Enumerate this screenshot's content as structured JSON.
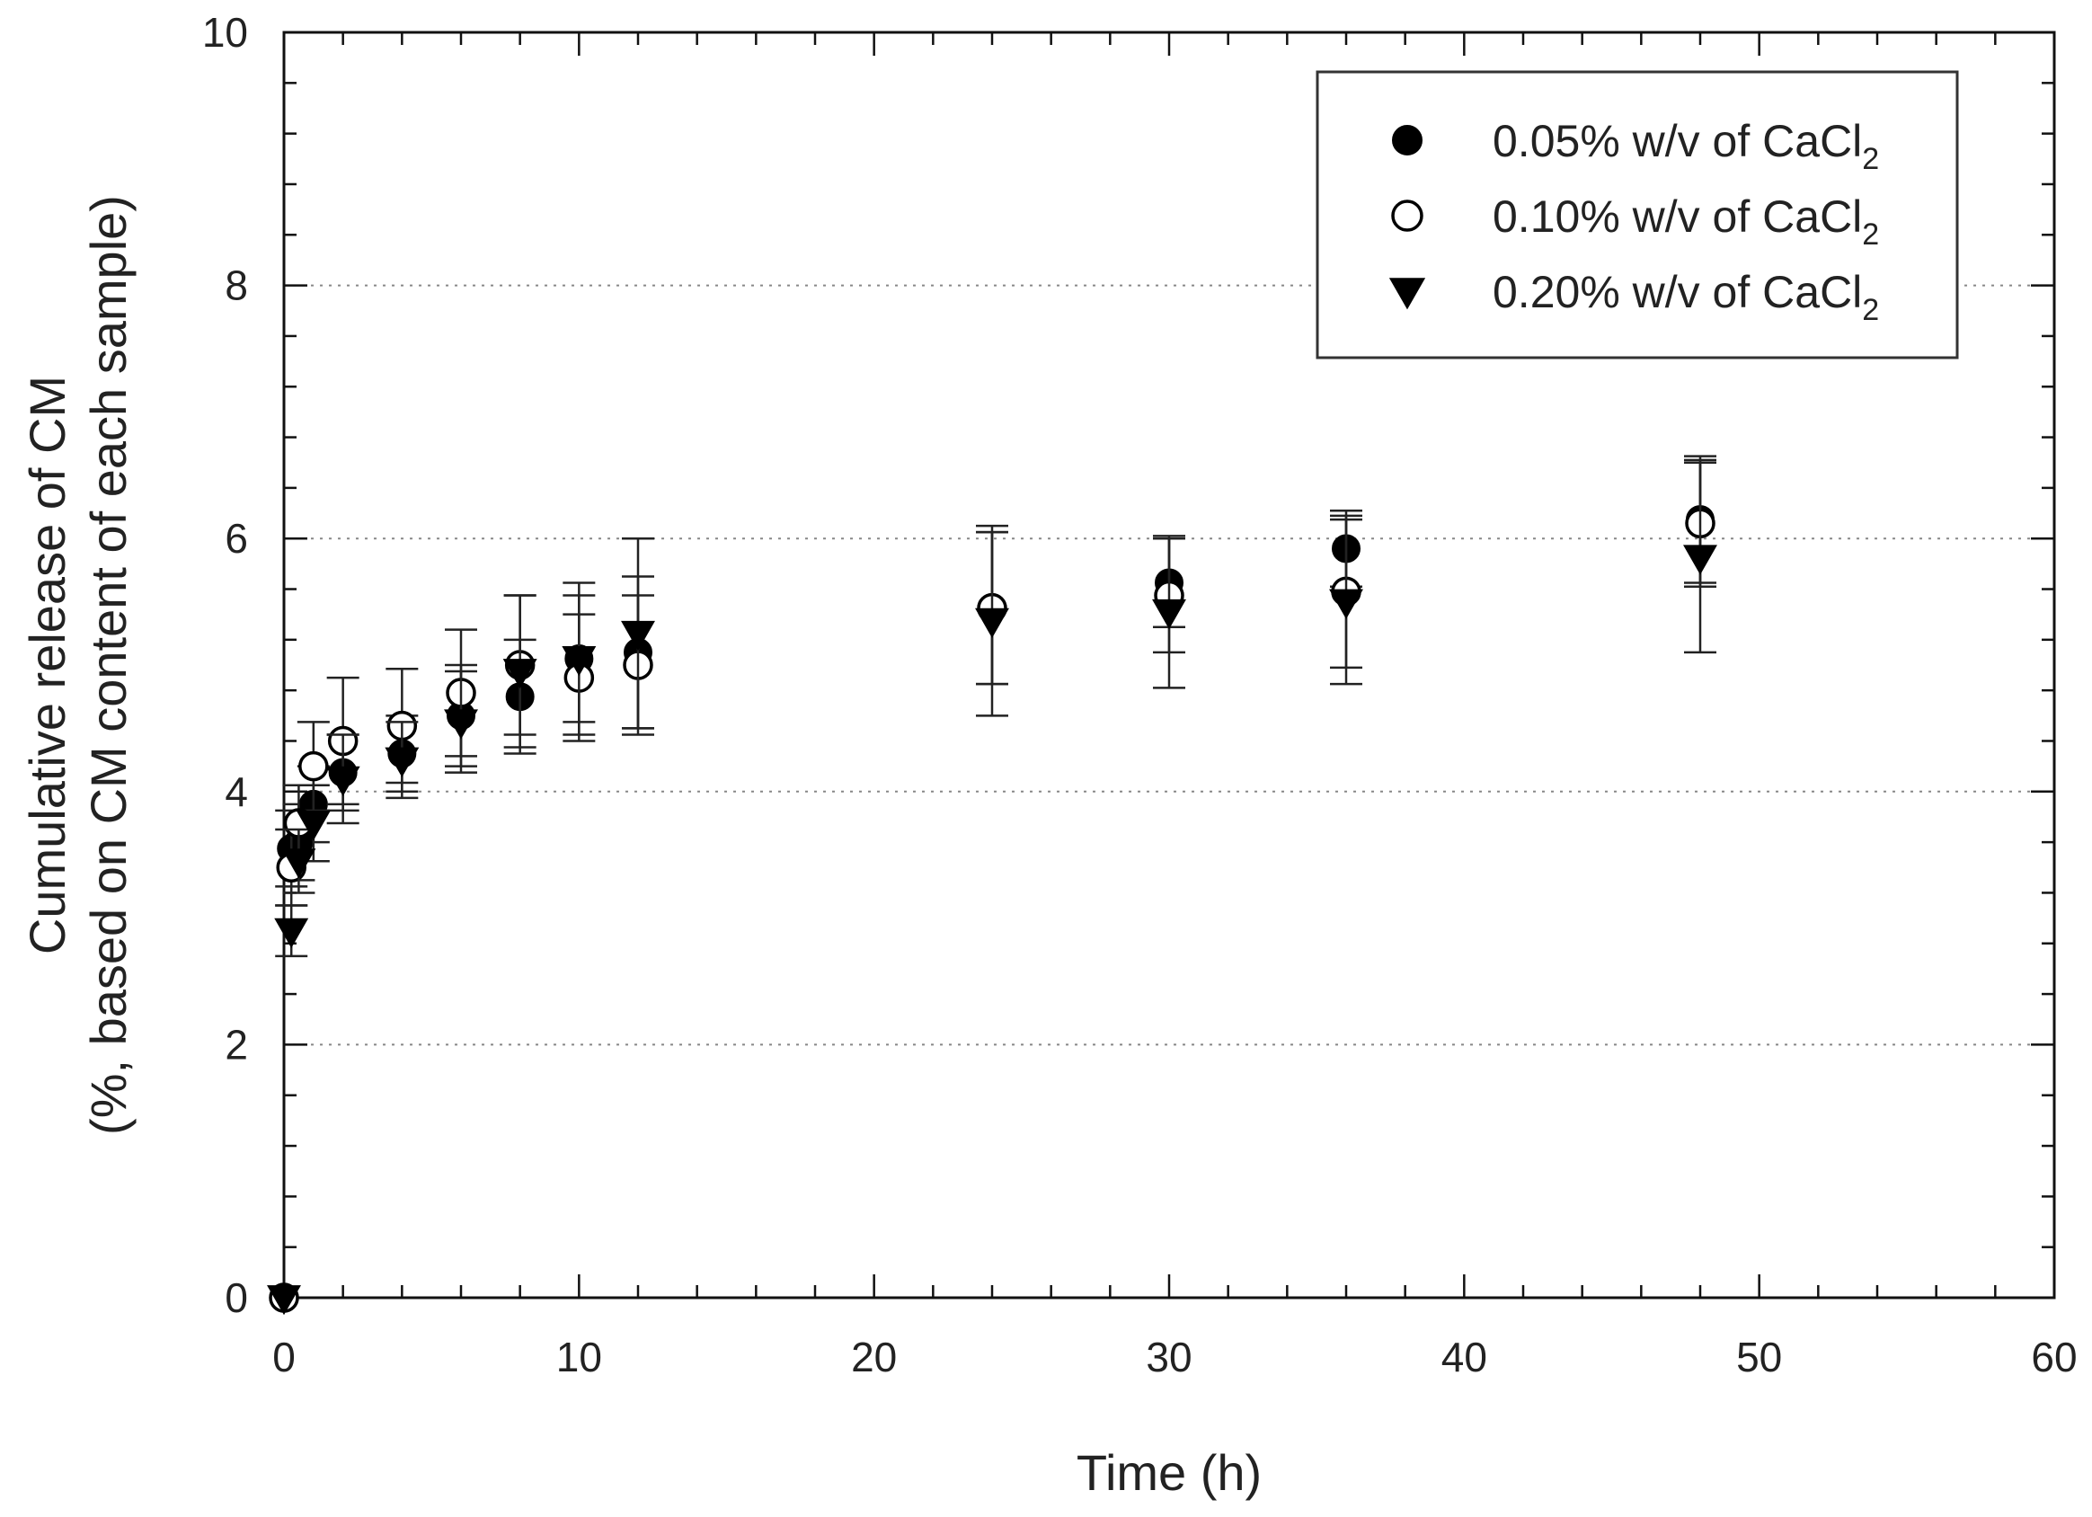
{
  "chart_data": {
    "type": "scatter",
    "title": "",
    "xlabel": "Time (h)",
    "ylabel_line1": "Cumulative release of CM",
    "ylabel_line2": "(%, based on CM content of each sample)",
    "xlim": [
      0,
      60
    ],
    "ylim": [
      0,
      10
    ],
    "xticks": [
      0,
      10,
      20,
      30,
      40,
      50,
      60
    ],
    "yticks": [
      0,
      2,
      4,
      6,
      8,
      10
    ],
    "xtick_labels": [
      "0",
      "10",
      "20",
      "30",
      "40",
      "50",
      "60"
    ],
    "ytick_labels": [
      "0",
      "2",
      "4",
      "6",
      "8",
      "10"
    ],
    "grid": "horizontal dotted at major y ticks",
    "legend_position": "top-right",
    "series": [
      {
        "name": "0.05% w/v of CaCl",
        "name_subscript": "2",
        "marker": "filled-circle",
        "x": [
          0,
          0.25,
          0.5,
          1,
          2,
          4,
          6,
          8,
          10,
          12,
          24,
          30,
          36,
          48
        ],
        "y": [
          0,
          3.55,
          3.6,
          3.9,
          4.15,
          4.3,
          4.6,
          4.75,
          5.05,
          5.1,
          5.45,
          5.65,
          5.92,
          6.15
        ],
        "err": [
          0,
          0.3,
          0.3,
          0.3,
          0.3,
          0.3,
          0.4,
          0.45,
          0.5,
          0.6,
          0.6,
          0.35,
          0.3,
          0.5
        ]
      },
      {
        "name": "0.10% w/v of CaCl",
        "name_subscript": "2",
        "marker": "open-circle",
        "x": [
          0,
          0.25,
          0.5,
          1,
          2,
          4,
          6,
          8,
          10,
          12,
          24,
          30,
          36,
          48
        ],
        "y": [
          0,
          3.4,
          3.75,
          4.2,
          4.4,
          4.52,
          4.78,
          5.0,
          4.9,
          5.0,
          5.45,
          5.55,
          5.58,
          6.12
        ],
        "err": [
          0,
          0.3,
          0.3,
          0.35,
          0.5,
          0.45,
          0.5,
          0.55,
          0.5,
          0.55,
          0.6,
          0.45,
          0.6,
          0.5
        ]
      },
      {
        "name": "0.20% w/v of CaCl",
        "name_subscript": "2",
        "marker": "filled-triangle-down",
        "x": [
          0,
          0.25,
          0.5,
          1,
          2,
          4,
          6,
          8,
          10,
          12,
          24,
          30,
          36,
          48
        ],
        "y": [
          0,
          2.9,
          3.45,
          3.75,
          4.1,
          4.25,
          4.55,
          4.95,
          5.05,
          5.25,
          5.35,
          5.42,
          5.5,
          5.85
        ],
        "err": [
          0,
          0.2,
          0.25,
          0.3,
          0.35,
          0.3,
          0.4,
          0.6,
          0.6,
          0.75,
          0.75,
          0.6,
          0.65,
          0.75
        ]
      }
    ]
  }
}
